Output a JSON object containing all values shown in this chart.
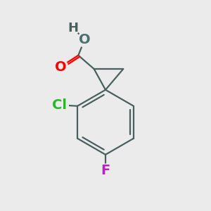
{
  "background_color": "#ebebeb",
  "bond_color": "#4a6060",
  "bond_width": 1.6,
  "atom_colors": {
    "O_carbonyl": "#ff0000",
    "O_hydroxyl": "#4a7070",
    "H": "#4a6060",
    "Cl": "#22bb22",
    "F": "#bb22bb",
    "C": "#4a6060"
  },
  "font_size": 14,
  "font_size_H": 13
}
